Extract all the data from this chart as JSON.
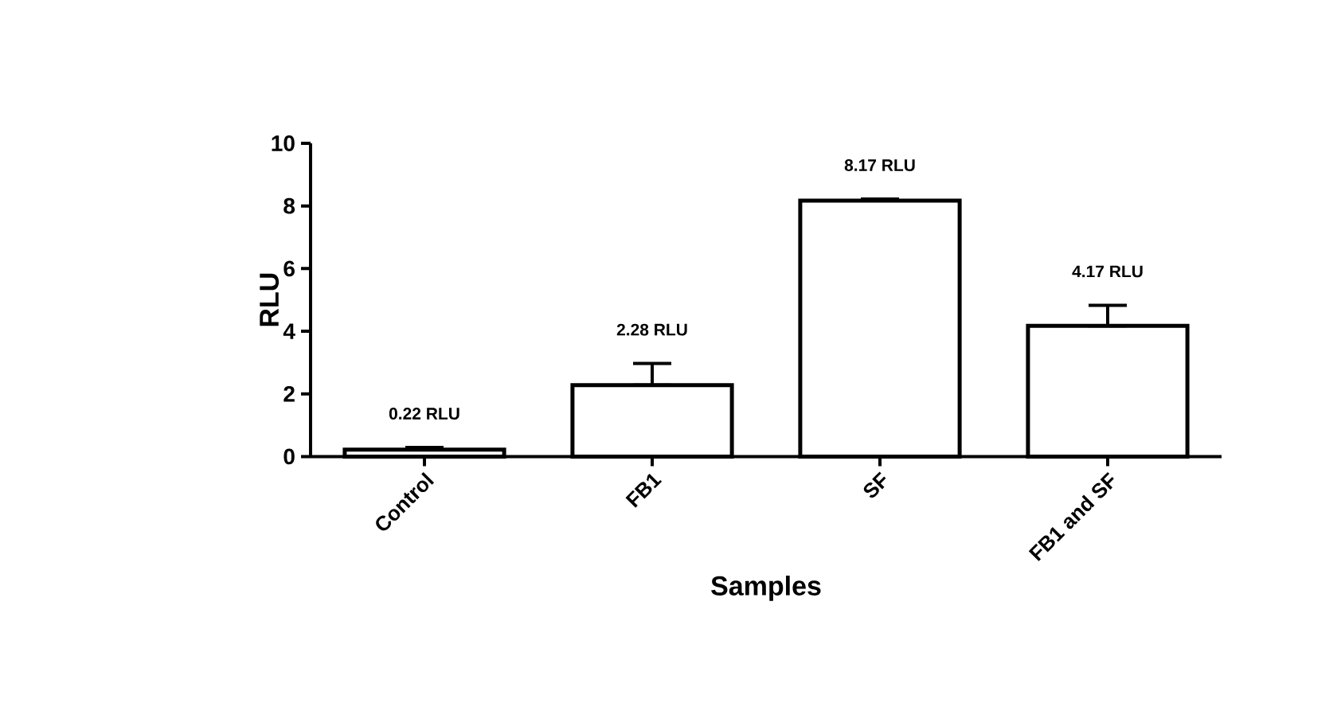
{
  "chart_data": {
    "type": "bar",
    "categories": [
      "Control",
      "FB1",
      "SF",
      "FB1 and SF"
    ],
    "values": [
      0.22,
      2.28,
      8.17,
      4.17
    ],
    "errors": [
      [
        0.22,
        0.29
      ],
      [
        2.28,
        2.97
      ],
      [
        8.17,
        8.22
      ],
      [
        4.17,
        4.83
      ]
    ],
    "value_labels": [
      "0.22 RLU",
      "2.28 RLU",
      "8.17 RLU",
      "4.17 RLU"
    ],
    "color": "#ffffff",
    "xlabel": "Samples",
    "ylabel": "RLU",
    "ylim": [
      0,
      10
    ],
    "yticks": [
      0,
      2,
      4,
      6,
      8,
      10
    ]
  }
}
